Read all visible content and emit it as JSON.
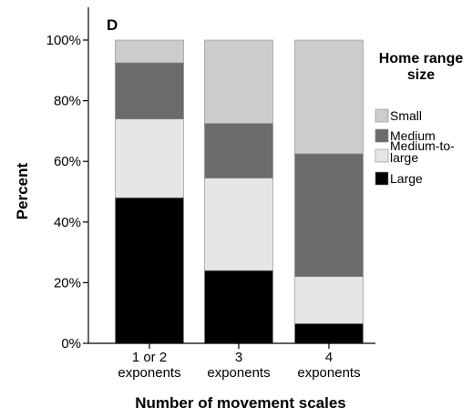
{
  "chart_data": {
    "type": "bar",
    "stacked": true,
    "panel_label": "D",
    "xlabel": "Number of movement scales",
    "ylabel": "Percent",
    "ylim": [
      0,
      100
    ],
    "yticks": [
      "0%",
      "20%",
      "40%",
      "60%",
      "80%",
      "100%"
    ],
    "categories": [
      [
        "1 or 2",
        "exponents"
      ],
      [
        "3",
        "exponents"
      ],
      [
        "4",
        "exponents"
      ]
    ],
    "legend": {
      "title": [
        "Home range",
        "size"
      ],
      "placement": "right",
      "entries": [
        {
          "series": 3,
          "lines": [
            "Small"
          ]
        },
        {
          "series": 2,
          "lines": [
            "Medium"
          ]
        },
        {
          "series": 1,
          "lines": [
            "Medium-to-",
            "large"
          ]
        },
        {
          "series": 0,
          "lines": [
            "Large"
          ]
        }
      ]
    },
    "series": [
      {
        "name": "Large",
        "color": "#000000",
        "values": [
          48,
          24,
          6.5
        ]
      },
      {
        "name": "Medium-to-large",
        "color": "#e6e6e6",
        "values": [
          26,
          30.5,
          15.5
        ]
      },
      {
        "name": "Medium",
        "color": "#6b6b6b",
        "values": [
          18.5,
          18,
          40.5
        ]
      },
      {
        "name": "Small",
        "color": "#cccccc",
        "values": [
          7.5,
          27.5,
          37.5
        ]
      }
    ],
    "grid": false
  }
}
